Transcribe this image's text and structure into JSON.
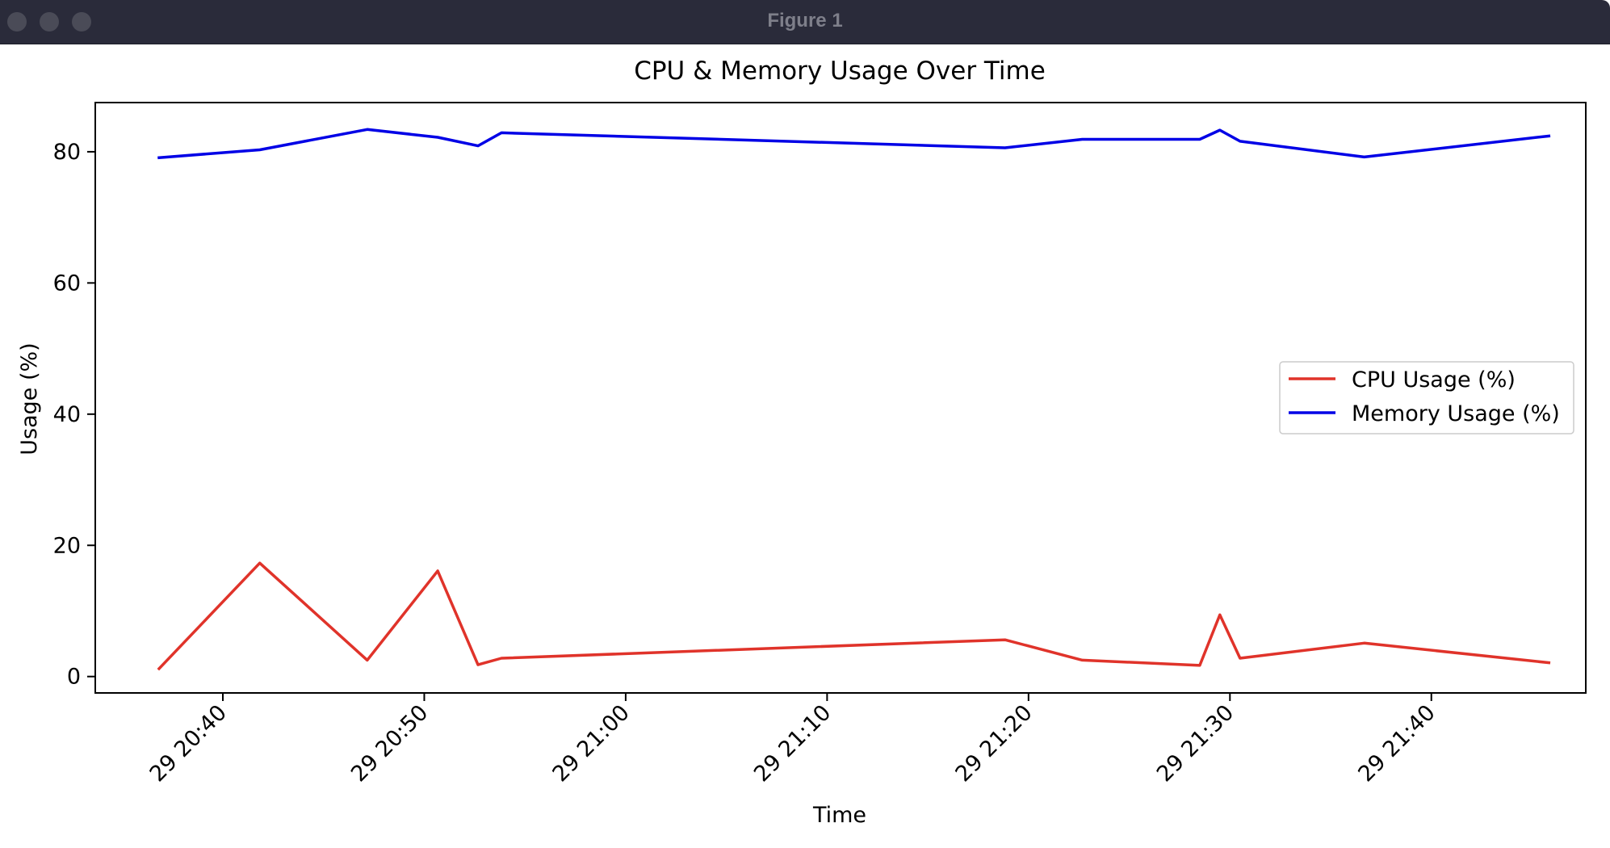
{
  "window": {
    "title": "Figure 1"
  },
  "chart_data": {
    "type": "line",
    "title": "CPU & Memory Usage Over Time",
    "xlabel": "Time",
    "ylabel": "Usage (%)",
    "xlim": [
      "20:33:40",
      "21:47:40"
    ],
    "ylim": [
      -2.5,
      87.5
    ],
    "x_ticks": [
      {
        "time": "20:40",
        "label": "29 20:40"
      },
      {
        "time": "20:50",
        "label": "29 20:50"
      },
      {
        "time": "21:00",
        "label": "29 21:00"
      },
      {
        "time": "21:10",
        "label": "29 21:10"
      },
      {
        "time": "21:20",
        "label": "29 21:20"
      },
      {
        "time": "21:30",
        "label": "29 21:30"
      },
      {
        "time": "21:40",
        "label": "29 21:40"
      }
    ],
    "y_ticks": [
      0,
      20,
      40,
      60,
      80
    ],
    "grid": false,
    "legend": {
      "position": "center-right"
    },
    "series": [
      {
        "name": "CPU Usage (%)",
        "color": "#e0332a",
        "points": [
          {
            "x": "20:36:50",
            "y": 1.2
          },
          {
            "x": "20:41:50",
            "y": 17.3
          },
          {
            "x": "20:47:10",
            "y": 2.5
          },
          {
            "x": "20:50:40",
            "y": 16.1
          },
          {
            "x": "20:52:40",
            "y": 1.8
          },
          {
            "x": "20:53:50",
            "y": 2.8
          },
          {
            "x": "21:18:50",
            "y": 5.6
          },
          {
            "x": "21:22:40",
            "y": 2.5
          },
          {
            "x": "21:28:30",
            "y": 1.7
          },
          {
            "x": "21:29:30",
            "y": 9.4
          },
          {
            "x": "21:30:30",
            "y": 2.8
          },
          {
            "x": "21:36:40",
            "y": 5.1
          },
          {
            "x": "21:45:50",
            "y": 2.1
          }
        ]
      },
      {
        "name": "Memory Usage (%)",
        "color": "#0000e6",
        "points": [
          {
            "x": "20:36:50",
            "y": 79.1
          },
          {
            "x": "20:41:50",
            "y": 80.3
          },
          {
            "x": "20:47:10",
            "y": 83.4
          },
          {
            "x": "20:50:40",
            "y": 82.2
          },
          {
            "x": "20:52:40",
            "y": 80.9
          },
          {
            "x": "20:53:50",
            "y": 82.9
          },
          {
            "x": "21:18:50",
            "y": 80.6
          },
          {
            "x": "21:22:40",
            "y": 81.9
          },
          {
            "x": "21:28:30",
            "y": 81.9
          },
          {
            "x": "21:29:30",
            "y": 83.3
          },
          {
            "x": "21:30:30",
            "y": 81.6
          },
          {
            "x": "21:36:40",
            "y": 79.2
          },
          {
            "x": "21:45:50",
            "y": 82.4
          }
        ]
      }
    ]
  }
}
